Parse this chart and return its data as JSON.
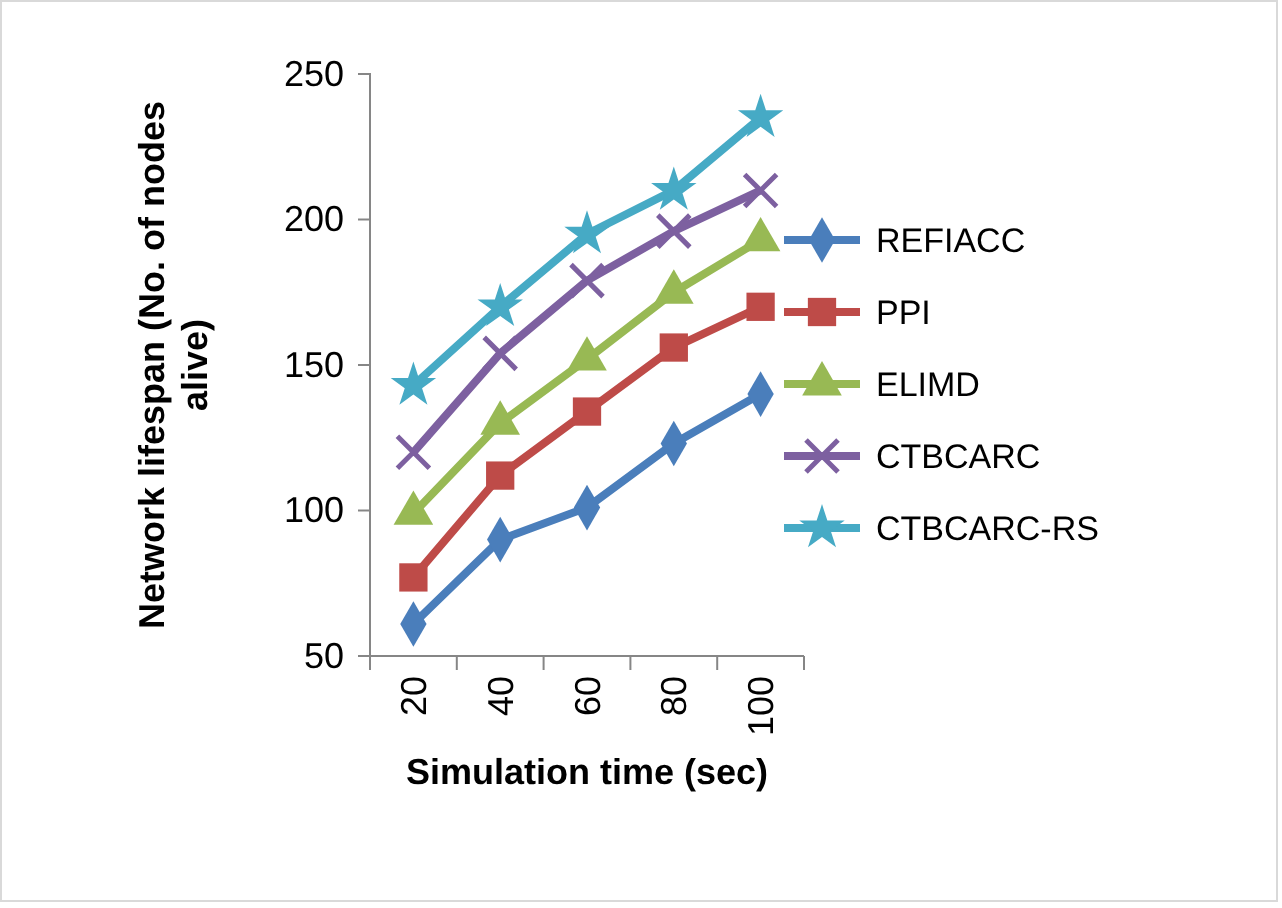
{
  "chart_data": {
    "type": "line",
    "xlabel": "Simulation time (sec)",
    "ylabel": "Network lifespan (No. of nodes alive)",
    "categories": [
      "20",
      "40",
      "60",
      "80",
      "100"
    ],
    "ylim": [
      50,
      250
    ],
    "yticks": [
      50,
      100,
      150,
      200,
      250
    ],
    "grid": false,
    "legend": "right",
    "line_style": "solid",
    "series": [
      {
        "name": "REFIACC",
        "color": "#4a7ebb",
        "marker": "diamond",
        "values": [
          61,
          90,
          101,
          123,
          140
        ]
      },
      {
        "name": "PPI",
        "color": "#be4b48",
        "marker": "square",
        "values": [
          77,
          112,
          134,
          156,
          170
        ]
      },
      {
        "name": "ELIMD",
        "color": "#98b954",
        "marker": "triangle",
        "values": [
          99,
          130,
          152,
          175,
          193
        ]
      },
      {
        "name": "CTBCARC",
        "color": "#7d60a0",
        "marker": "cross",
        "values": [
          120,
          154,
          179,
          196,
          210
        ]
      },
      {
        "name": "CTBCARC-RS",
        "color": "#46aac5",
        "marker": "star",
        "values": [
          143,
          170,
          195,
          210,
          235
        ]
      }
    ]
  }
}
